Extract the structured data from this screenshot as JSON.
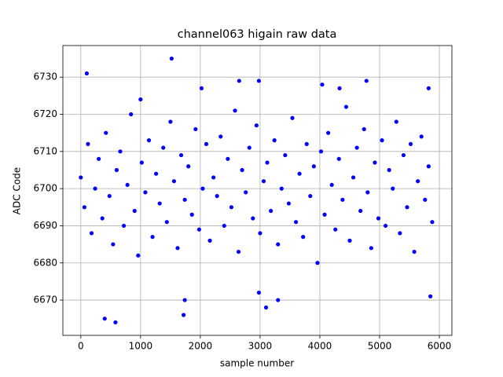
{
  "chart_data": {
    "type": "scatter",
    "title": "channel063 higain raw data",
    "xlabel": "sample number",
    "ylabel": "ADC Code",
    "xlim": [
      -300,
      6210
    ],
    "ylim": [
      6660.5,
      6738.5
    ],
    "xticks": [
      0,
      1000,
      2000,
      3000,
      4000,
      5000,
      6000
    ],
    "yticks": [
      6670,
      6680,
      6690,
      6700,
      6710,
      6720,
      6730
    ],
    "grid": true,
    "color": "#0000ff",
    "x": [
      0,
      60,
      120,
      180,
      240,
      300,
      360,
      420,
      480,
      540,
      600,
      660,
      720,
      780,
      840,
      900,
      960,
      1020,
      1080,
      1140,
      1200,
      1260,
      1320,
      1380,
      1440,
      1500,
      1560,
      1620,
      1680,
      1740,
      1800,
      1860,
      1920,
      1980,
      2040,
      2100,
      2160,
      2220,
      2280,
      2340,
      2400,
      2460,
      2520,
      2580,
      2640,
      2700,
      2760,
      2820,
      2880,
      2940,
      3000,
      3060,
      3120,
      3180,
      3240,
      3300,
      3360,
      3420,
      3480,
      3540,
      3600,
      3660,
      3720,
      3780,
      3840,
      3900,
      3960,
      4020,
      4080,
      4140,
      4200,
      4260,
      4320,
      4380,
      4440,
      4500,
      4560,
      4620,
      4680,
      4740,
      4800,
      4860,
      4920,
      4980,
      5040,
      5100,
      5160,
      5220,
      5280,
      5340,
      5400,
      5460,
      5520,
      5580,
      5640,
      5700,
      5760,
      5820,
      5880,
      100,
      1520,
      400,
      580,
      1720,
      1740,
      3100,
      3300,
      2980,
      5850,
      2980,
      4040,
      4780,
      2650,
      5820,
      1000,
      2020,
      4330
    ],
    "y": [
      6703,
      6695,
      6712,
      6688,
      6700,
      6708,
      6692,
      6715,
      6698,
      6685,
      6705,
      6710,
      6690,
      6701,
      6720,
      6694,
      6682,
      6707,
      6699,
      6713,
      6687,
      6704,
      6696,
      6711,
      6691,
      6718,
      6702,
      6684,
      6709,
      6697,
      6706,
      6693,
      6716,
      6689,
      6700,
      6712,
      6686,
      6703,
      6698,
      6714,
      6690,
      6708,
      6695,
      6721,
      6683,
      6705,
      6699,
      6711,
      6692,
      6717,
      6688,
      6702,
      6707,
      6694,
      6713,
      6685,
      6700,
      6709,
      6696,
      6719,
      6691,
      6704,
      6687,
      6712,
      6698,
      6706,
      6680,
      6710,
      6693,
      6715,
      6701,
      6689,
      6708,
      6697,
      6722,
      6686,
      6703,
      6711,
      6694,
      6716,
      6699,
      6684,
      6707,
      6692,
      6713,
      6690,
      6705,
      6700,
      6718,
      6688,
      6709,
      6695,
      6712,
      6683,
      6702,
      6714,
      6697,
      6706,
      6691,
      6731,
      6735,
      6665,
      6664,
      6666,
      6670,
      6668,
      6670,
      6672,
      6671,
      6729,
      6728,
      6729,
      6729,
      6727,
      6724,
      6727,
      6727
    ]
  }
}
